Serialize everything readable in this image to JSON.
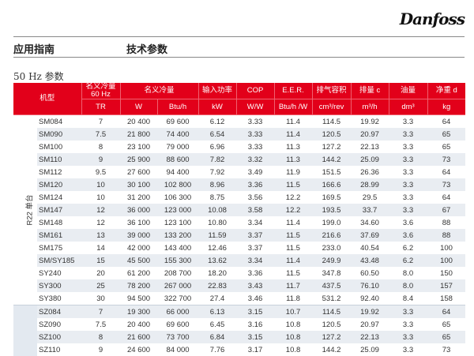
{
  "header": {
    "brand": "Danfoss",
    "left_title": "应用指南",
    "right_title": "技术参数"
  },
  "section_title": "50 Hz 参数",
  "colors": {
    "header_red": "#e2001a",
    "stripe": "#e9edf2"
  },
  "table": {
    "header_row1": [
      "机型",
      "名义冷量 60 Hz",
      "名义冷量",
      "输入功率",
      "COP",
      "E.E.R.",
      "排气容积",
      "排量 c",
      "油量",
      "净重 d"
    ],
    "header_row2": [
      "TR",
      "W",
      "Btu/h",
      "kW",
      "W/W",
      "Btu/h /W",
      "cm³/rev",
      "m³/h",
      "dm³",
      "kg"
    ],
    "groups": [
      {
        "label": "R22 单台",
        "rows": [
          [
            "SM084",
            "7",
            "20 400",
            "69 600",
            "6.12",
            "3.33",
            "11.4",
            "114.5",
            "19.92",
            "3.3",
            "64"
          ],
          [
            "SM090",
            "7.5",
            "21 800",
            "74 400",
            "6.54",
            "3.33",
            "11.4",
            "120.5",
            "20.97",
            "3.3",
            "65"
          ],
          [
            "SM100",
            "8",
            "23 100",
            "79 000",
            "6.96",
            "3.33",
            "11.3",
            "127.2",
            "22.13",
            "3.3",
            "65"
          ],
          [
            "SM110",
            "9",
            "25 900",
            "88 600",
            "7.82",
            "3.32",
            "11.3",
            "144.2",
            "25.09",
            "3.3",
            "73"
          ],
          [
            "SM112",
            "9.5",
            "27 600",
            "94 400",
            "7.92",
            "3.49",
            "11.9",
            "151.5",
            "26.36",
            "3.3",
            "64"
          ],
          [
            "SM120",
            "10",
            "30 100",
            "102 800",
            "8.96",
            "3.36",
            "11.5",
            "166.6",
            "28.99",
            "3.3",
            "73"
          ],
          [
            "SM124",
            "10",
            "31 200",
            "106 300",
            "8.75",
            "3.56",
            "12.2",
            "169.5",
            "29.5",
            "3.3",
            "64"
          ],
          [
            "SM147",
            "12",
            "36 000",
            "123 000",
            "10.08",
            "3.58",
            "12.2",
            "193.5",
            "33.7",
            "3.3",
            "67"
          ],
          [
            "SM148",
            "12",
            "36 100",
            "123 100",
            "10.80",
            "3.34",
            "11.4",
            "199.0",
            "34.60",
            "3.6",
            "88"
          ],
          [
            "SM161",
            "13",
            "39 000",
            "133 200",
            "11.59",
            "3.37",
            "11.5",
            "216.6",
            "37.69",
            "3.6",
            "88"
          ],
          [
            "SM175",
            "14",
            "42 000",
            "143 400",
            "12.46",
            "3.37",
            "11.5",
            "233.0",
            "40.54",
            "6.2",
            "100"
          ],
          [
            "SM/SY185",
            "15",
            "45 500",
            "155 300",
            "13.62",
            "3.34",
            "11.4",
            "249.9",
            "43.48",
            "6.2",
            "100"
          ],
          [
            "SY240",
            "20",
            "61 200",
            "208 700",
            "18.20",
            "3.36",
            "11.5",
            "347.8",
            "60.50",
            "8.0",
            "150"
          ],
          [
            "SY300",
            "25",
            "78 200",
            "267 000",
            "22.83",
            "3.43",
            "11.7",
            "437.5",
            "76.10",
            "8.0",
            "157"
          ],
          [
            "SY380",
            "30",
            "94 500",
            "322 700",
            "27.4",
            "3.46",
            "11.8",
            "531.2",
            "92.40",
            "8.4",
            "158"
          ]
        ]
      },
      {
        "label": "",
        "rows": [
          [
            "SZ084",
            "7",
            "19 300",
            "66 000",
            "6.13",
            "3.15",
            "10.7",
            "114.5",
            "19.92",
            "3.3",
            "64"
          ],
          [
            "SZ090",
            "7.5",
            "20 400",
            "69 600",
            "6.45",
            "3.16",
            "10.8",
            "120.5",
            "20.97",
            "3.3",
            "65"
          ],
          [
            "SZ100",
            "8",
            "21 600",
            "73 700",
            "6.84",
            "3.15",
            "10.8",
            "127.2",
            "22.13",
            "3.3",
            "65"
          ],
          [
            "SZ110",
            "9",
            "24 600",
            "84 000",
            "7.76",
            "3.17",
            "10.8",
            "144.2",
            "25.09",
            "3.3",
            "73"
          ]
        ]
      }
    ]
  }
}
